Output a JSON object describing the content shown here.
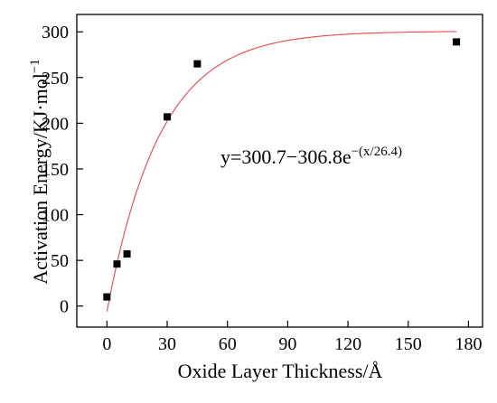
{
  "chart_data": {
    "type": "scatter",
    "xlabel": "Oxide Layer Thickness/Å",
    "ylabel": "Activation Energy/KJ·mol",
    "ylabel_sup": "−1",
    "xlim": [
      -15,
      187
    ],
    "ylim": [
      -23,
      319
    ],
    "xticks": [
      0,
      30,
      60,
      90,
      120,
      150,
      180
    ],
    "yticks": [
      0,
      50,
      100,
      150,
      200,
      250,
      300
    ],
    "grid": false,
    "series": [
      {
        "kind": "scatter",
        "marker": "square",
        "color": "#000000",
        "x": [
          0,
          5,
          10,
          30,
          45,
          174
        ],
        "y": [
          10,
          46,
          57,
          207,
          265,
          289
        ]
      },
      {
        "kind": "fit_line",
        "color": "#e8474b",
        "model": {
          "a": 300.7,
          "b": 306.8,
          "t": 26.4
        },
        "x_range": [
          0,
          174
        ]
      }
    ],
    "annotation": {
      "base": "y=300.7−306.8e",
      "sup": "−(x/26.4)"
    }
  }
}
